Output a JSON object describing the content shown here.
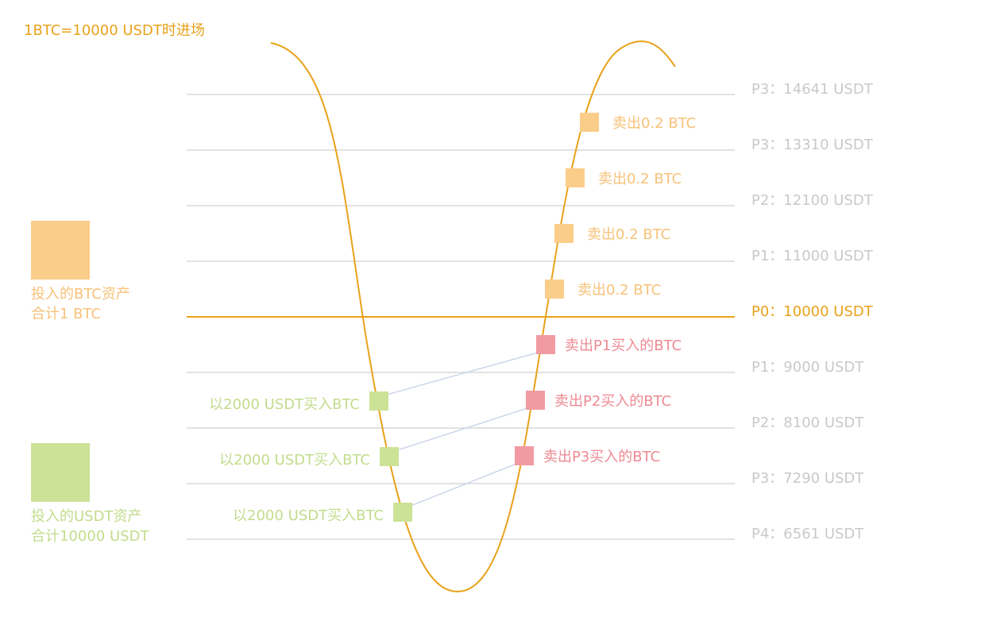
{
  "title": "1BTC=10000 USDT时进场",
  "colors": {
    "accent": "#e8a21a",
    "level_line": "#d9d9d9",
    "level_text": "#c9c9c9",
    "sell_btc": "#fbcd8a",
    "sell_btc_text": "#f7c27a",
    "buy_usdt": "#cce297",
    "buy_usdt_text": "#c3dc8c",
    "sell_bought": "#f19aa1",
    "sell_bought_text": "#ee8a93",
    "connector": "#cdd6ec"
  },
  "levels": [
    {
      "label": "P3：14641 USDT",
      "price": 14641
    },
    {
      "label": "P3：13310 USDT",
      "price": 13310
    },
    {
      "label": "P2：12100 USDT",
      "price": 12100
    },
    {
      "label": "P1：11000 USDT",
      "price": 11000
    },
    {
      "label": "P0：10000 USDT",
      "price": 10000,
      "entry": true
    },
    {
      "label": "P1：9000 USDT",
      "price": 9000
    },
    {
      "label": "P2：8100 USDT",
      "price": 8100
    },
    {
      "label": "P3：7290 USDT",
      "price": 7290
    },
    {
      "label": "P4：6561 USDT",
      "price": 6561
    }
  ],
  "sell_btc_orders": [
    {
      "label": "卖出0.2 BTC"
    },
    {
      "label": "卖出0.2 BTC"
    },
    {
      "label": "卖出0.2 BTC"
    },
    {
      "label": "卖出0.2 BTC"
    }
  ],
  "buy_orders": [
    {
      "label": "以2000 USDT买入BTC"
    },
    {
      "label": "以2000 USDT买入BTC"
    },
    {
      "label": "以2000 USDT买入BTC"
    }
  ],
  "sell_bought_orders": [
    {
      "label": "卖出P1买入的BTC"
    },
    {
      "label": "卖出P2买入的BTC"
    },
    {
      "label": "卖出P3买入的BTC"
    }
  ],
  "legend": {
    "btc": {
      "line1": "投入的BTC资产",
      "line2": "合计1 BTC"
    },
    "usdt": {
      "line1": "投入的USDT资产",
      "line2": "合计10000 USDT"
    }
  }
}
